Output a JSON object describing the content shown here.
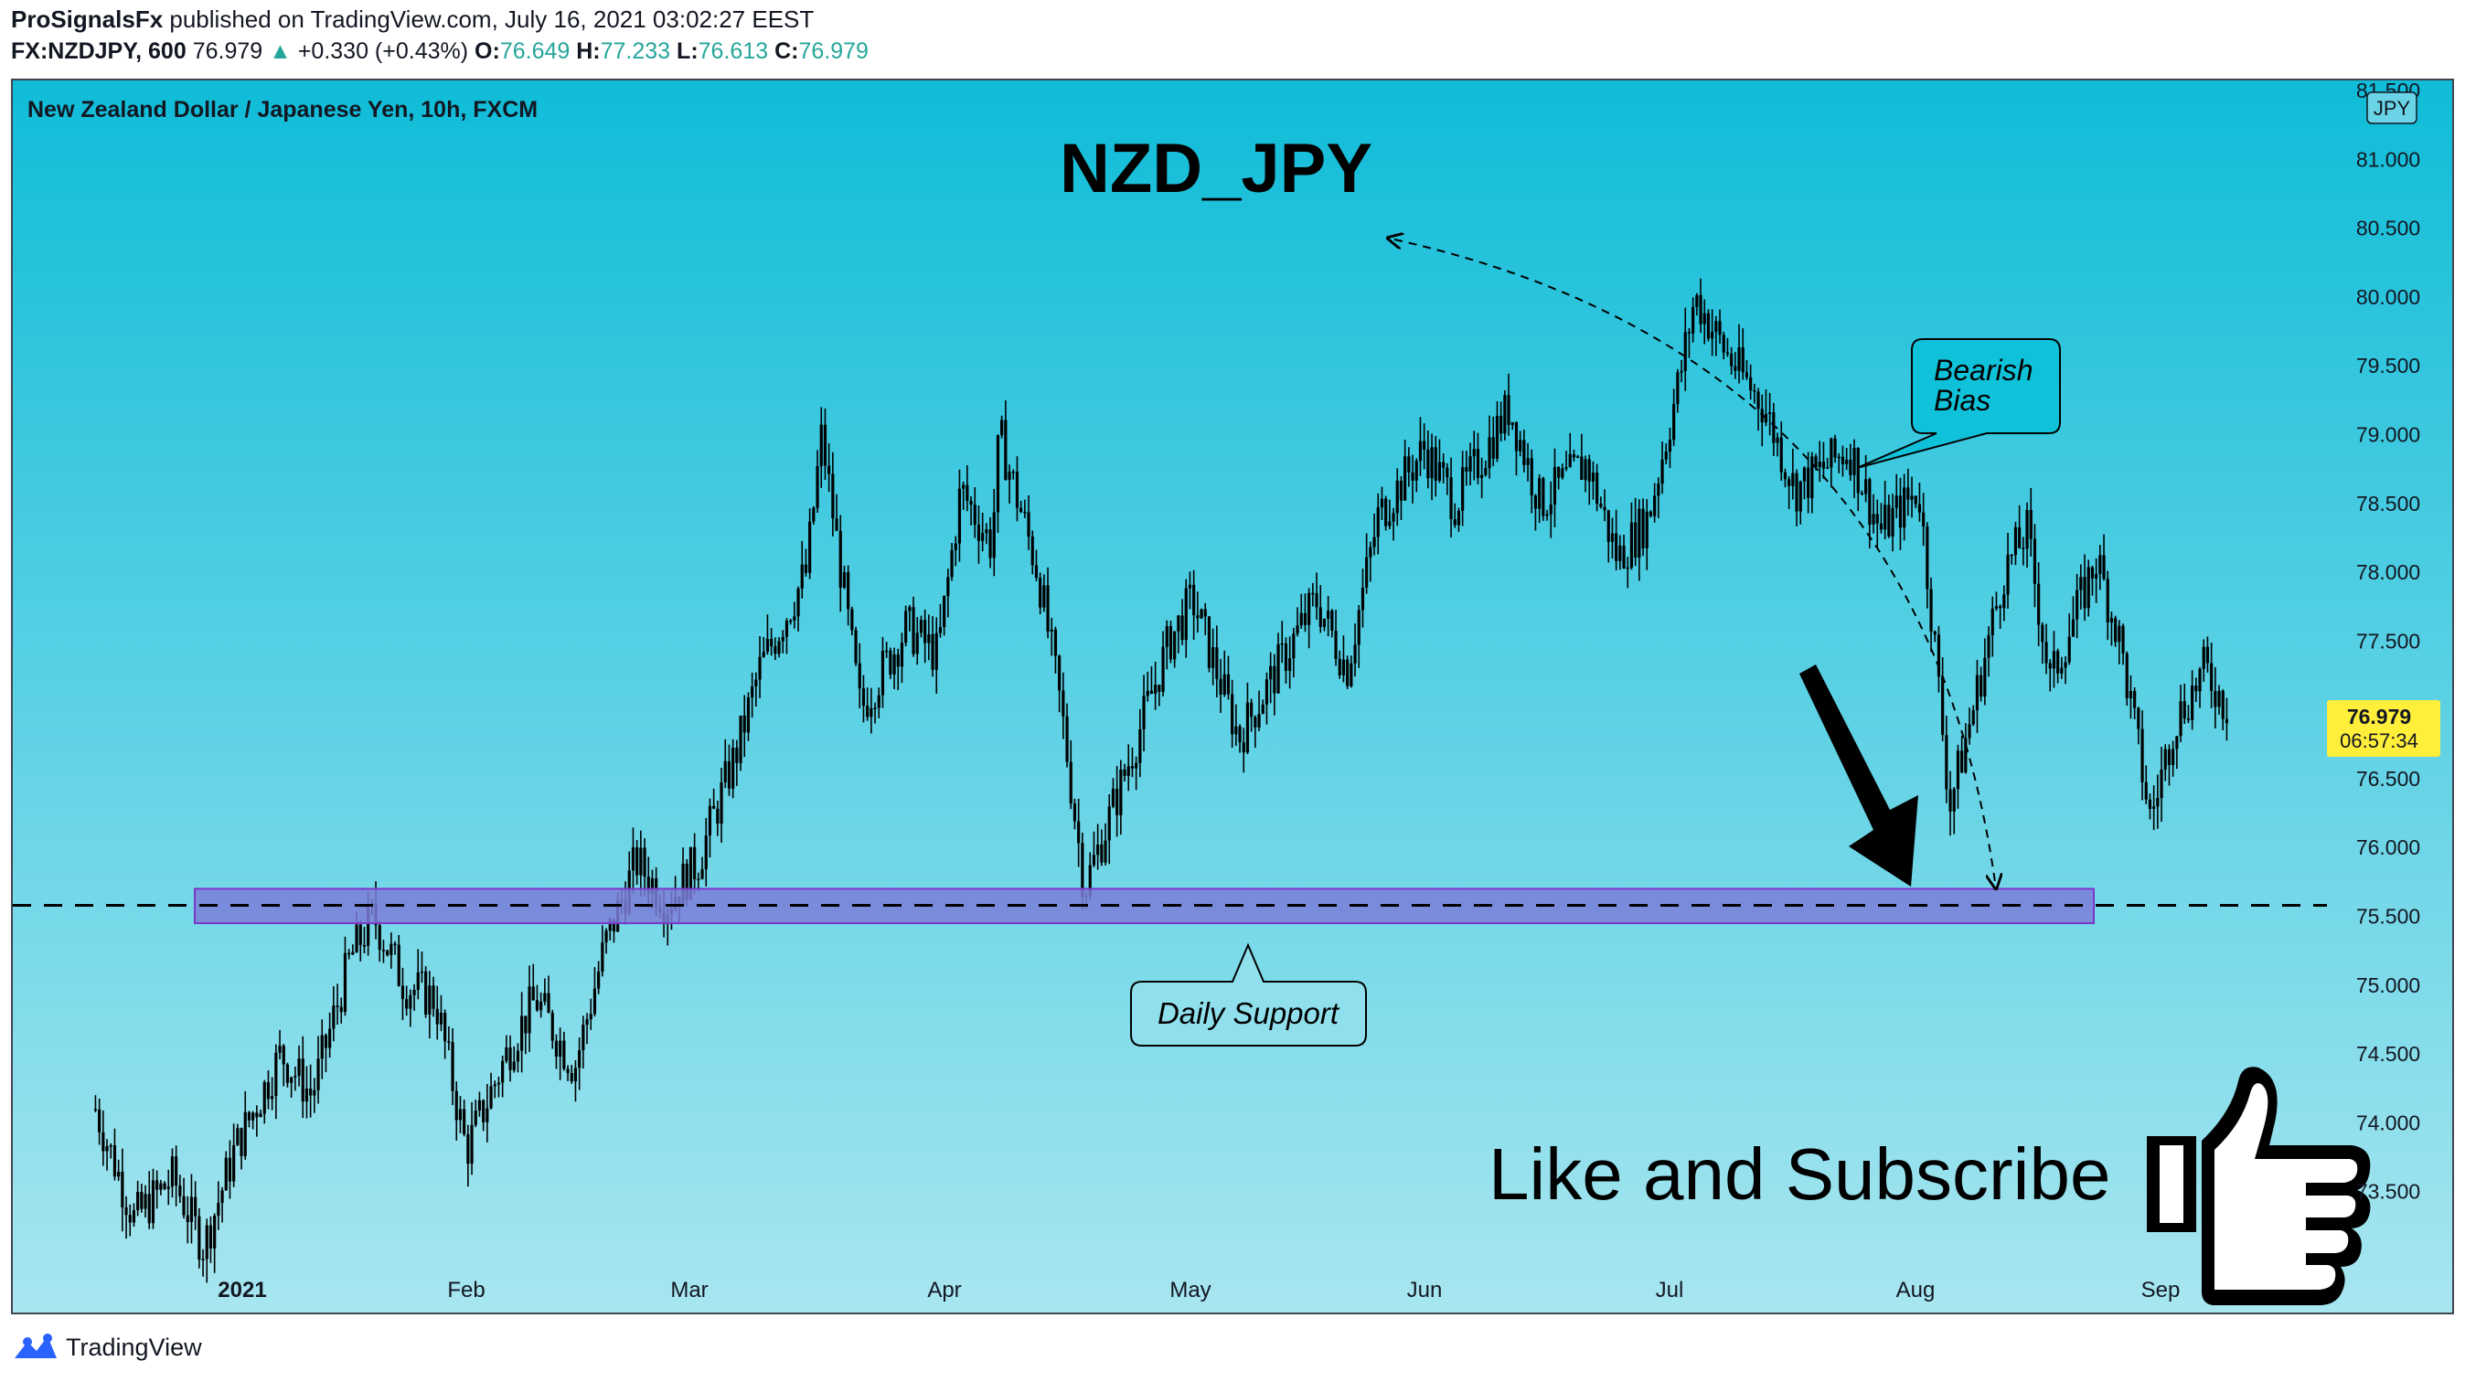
{
  "header": {
    "author": "ProSignalsFx",
    "published_text": "published on TradingView.com, July 16, 2021 03:02:27 EEST",
    "symbol": "FX:NZDJPY, 600",
    "last": "76.979",
    "change": "+0.330 (+0.43%)",
    "o_label": "O:",
    "o": "76.649",
    "h_label": "H:",
    "h": "77.233",
    "l_label": "L:",
    "l": "76.613",
    "c_label": "C:",
    "c": "76.979"
  },
  "chart_data": {
    "type": "candlestick",
    "instrument": "New Zealand Dollar / Japanese Yen, 10h, FXCM",
    "title": "NZD_JPY",
    "currency_badge": "JPY",
    "ylim": [
      73.0,
      81.5
    ],
    "y_ticks": [
      "81.500",
      "81.000",
      "80.500",
      "80.000",
      "79.500",
      "79.000",
      "78.500",
      "78.000",
      "77.500",
      "77.000",
      "76.500",
      "76.000",
      "75.500",
      "75.000",
      "74.500",
      "74.000",
      "73.500"
    ],
    "x_ticks": [
      "2021",
      "Feb",
      "Mar",
      "Apr",
      "May",
      "Jun",
      "Jul",
      "Aug",
      "Sep"
    ],
    "last_price": "76.979",
    "countdown": "06:57:34",
    "price_path": [
      [
        "2020-12-13",
        74.1
      ],
      [
        "2020-12-18",
        73.3
      ],
      [
        "2020-12-23",
        73.6
      ],
      [
        "2020-12-27",
        73.1
      ],
      [
        "2020-12-31",
        73.8
      ],
      [
        "2021-01-06",
        74.5
      ],
      [
        "2021-01-10",
        74.2
      ],
      [
        "2021-01-15",
        75.2
      ],
      [
        "2021-01-18",
        75.5
      ],
      [
        "2021-01-22",
        75.0
      ],
      [
        "2021-01-26",
        74.9
      ],
      [
        "2021-01-30",
        73.8
      ],
      [
        "2021-02-05",
        74.6
      ],
      [
        "2021-02-08",
        74.9
      ],
      [
        "2021-02-13",
        74.4
      ],
      [
        "2021-02-17",
        75.3
      ],
      [
        "2021-02-21",
        75.9
      ],
      [
        "2021-02-25",
        75.6
      ],
      [
        "2021-03-01",
        75.9
      ],
      [
        "2021-03-06",
        76.7
      ],
      [
        "2021-03-09",
        77.3
      ],
      [
        "2021-03-15",
        78.0
      ],
      [
        "2021-03-17",
        79.0
      ],
      [
        "2021-03-22",
        77.0
      ],
      [
        "2021-03-28",
        77.6
      ],
      [
        "2021-04-01",
        77.4
      ],
      [
        "2021-04-04",
        78.6
      ],
      [
        "2021-04-08",
        78.2
      ],
      [
        "2021-04-09",
        79.0
      ],
      [
        "2021-04-14",
        78.0
      ],
      [
        "2021-04-17",
        77.0
      ],
      [
        "2021-04-20",
        75.7
      ],
      [
        "2021-04-25",
        76.5
      ],
      [
        "2021-05-01",
        77.5
      ],
      [
        "2021-05-04",
        77.8
      ],
      [
        "2021-05-10",
        76.8
      ],
      [
        "2021-05-14",
        77.2
      ],
      [
        "2021-05-20",
        77.8
      ],
      [
        "2021-05-24",
        77.3
      ],
      [
        "2021-05-28",
        78.4
      ],
      [
        "2021-06-03",
        78.9
      ],
      [
        "2021-06-07",
        78.5
      ],
      [
        "2021-06-14",
        79.2
      ],
      [
        "2021-06-18",
        78.5
      ],
      [
        "2021-06-24",
        78.8
      ],
      [
        "2021-06-28",
        78.1
      ],
      [
        "2021-07-02",
        78.4
      ],
      [
        "2021-07-06",
        79.4
      ],
      [
        "2021-07-08",
        80.0
      ],
      [
        "2021-07-12",
        79.6
      ],
      [
        "2021-07-17",
        79.2
      ],
      [
        "2021-07-21",
        78.6
      ],
      [
        "2021-07-28",
        78.9
      ],
      [
        "2021-08-01",
        78.3
      ],
      [
        "2021-08-06",
        78.6
      ],
      [
        "2021-08-08",
        77.5
      ],
      [
        "2021-08-10",
        76.3
      ],
      [
        "2021-08-13",
        77.0
      ],
      [
        "2021-08-17",
        78.0
      ],
      [
        "2021-08-20",
        78.3
      ],
      [
        "2021-08-23",
        77.2
      ],
      [
        "2021-08-27",
        77.8
      ],
      [
        "2021-08-29",
        78.1
      ],
      [
        "2021-09-01",
        77.5
      ],
      [
        "2021-09-05",
        76.2
      ],
      [
        "2021-09-08",
        76.9
      ],
      [
        "2021-09-12",
        77.3
      ],
      [
        "2021-09-15",
        77.0
      ]
    ],
    "support_zone": [
      75.45,
      75.7
    ],
    "support_line": 75.58,
    "callouts": [
      "Daily Support",
      "Bearish Bias"
    ],
    "slogan": "Like and Subscribe"
  },
  "footer": {
    "brand": "TradingView"
  },
  "colors": {
    "bg_top": "#0fbcd8",
    "bg_bottom": "#a8e6f0",
    "candle": "#000000",
    "zone_fill": "#7b7ed8",
    "zone_stroke": "#7a38c8",
    "price_tag": "#ffee3a",
    "tv_blue": "#2962ff"
  }
}
